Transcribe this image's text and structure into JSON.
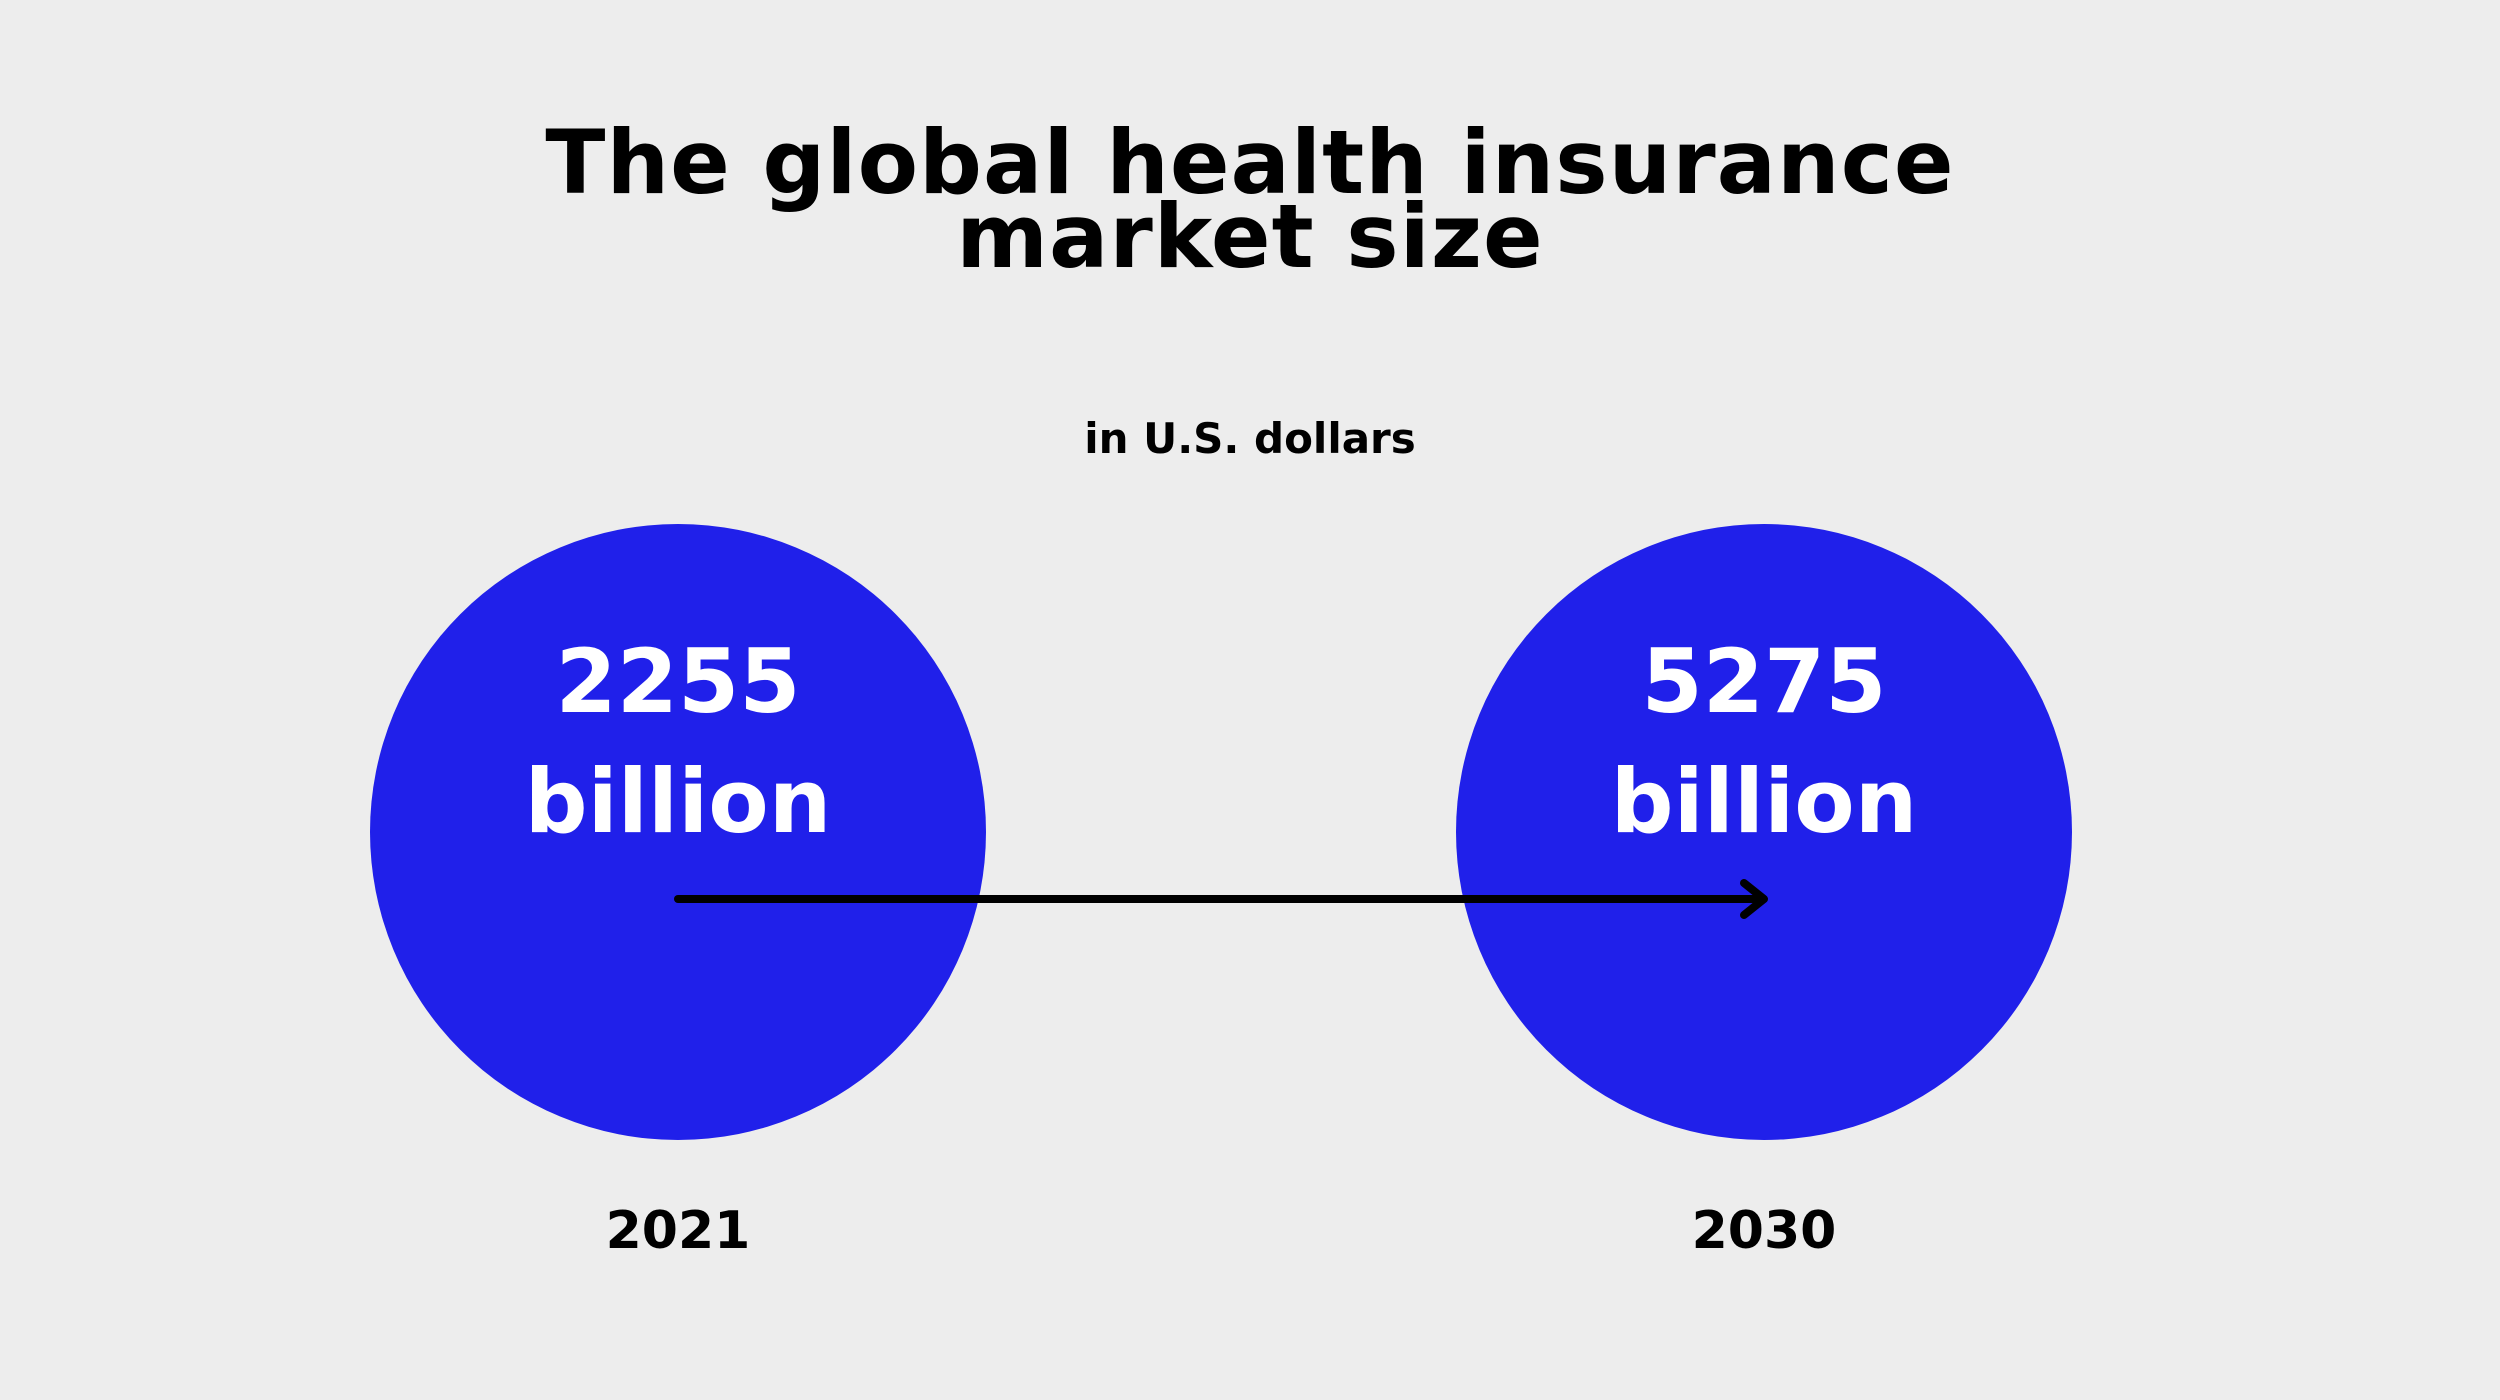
{
  "chart_data": {
    "type": "bubble",
    "title_lines": [
      "The global health insurance",
      "market size"
    ],
    "subtitle": "in U.S. dollars",
    "unit": "billion",
    "points": [
      {
        "year": "2021",
        "value": 2255,
        "value_text": "2255",
        "unit_text": "billion"
      },
      {
        "year": "2030",
        "value": 5275,
        "value_text": "5275",
        "unit_text": "billion"
      }
    ],
    "arrow": {
      "from": "2021",
      "to": "2030"
    },
    "colors": {
      "bubble": "#2020ea",
      "background": "#ededed",
      "arrow": "#000000",
      "value_text": "#ffffff"
    }
  }
}
